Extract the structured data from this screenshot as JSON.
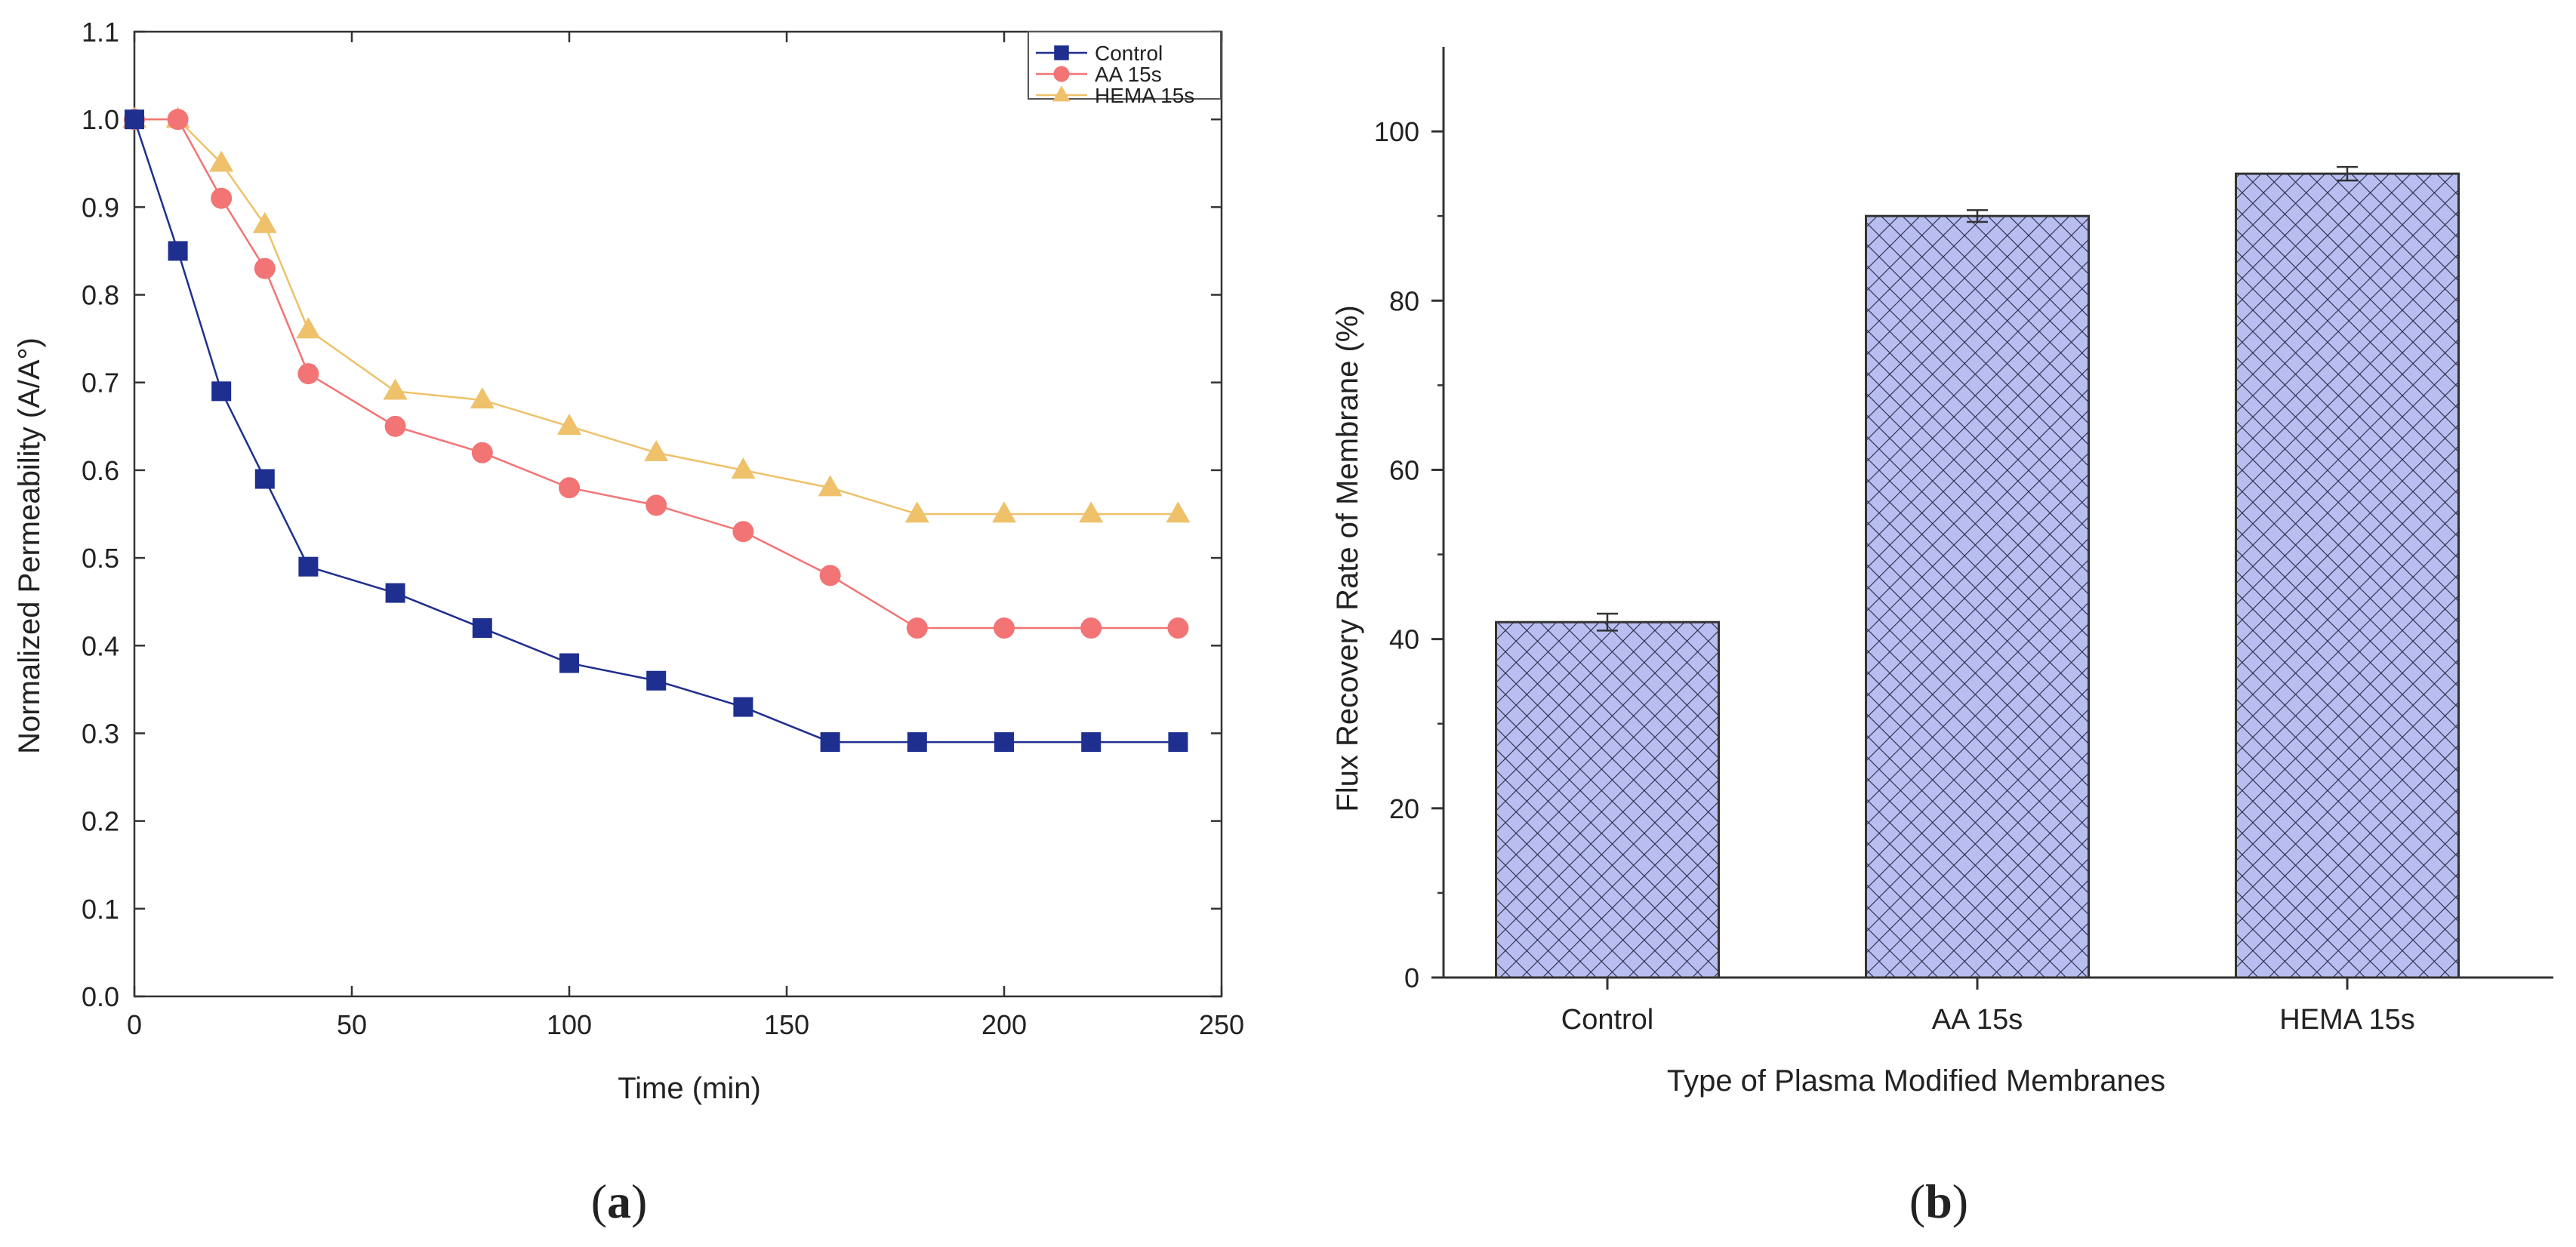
{
  "chart_data": [
    {
      "panel": "(a)",
      "panel_letter": "a",
      "type": "line",
      "title": "",
      "xlabel": "Time (min)",
      "ylabel": "Normalized Permeability (A/A°)",
      "xlim": [
        0,
        250
      ],
      "ylim": [
        0.0,
        1.1
      ],
      "xticks": [
        "0",
        "50",
        "100",
        "150",
        "200",
        "250"
      ],
      "yticks": [
        "0.0",
        "0.1",
        "0.2",
        "0.3",
        "0.4",
        "0.5",
        "0.6",
        "0.7",
        "0.8",
        "0.9",
        "1.0",
        "1.1"
      ],
      "legend_position": "top-right",
      "series": [
        {
          "name": "Control",
          "marker": "square",
          "color": "#1f2f8f",
          "x": [
            0,
            10,
            20,
            30,
            40,
            60,
            80,
            100,
            120,
            140,
            160,
            180,
            200,
            220,
            240
          ],
          "y": [
            1.0,
            0.85,
            0.69,
            0.59,
            0.49,
            0.46,
            0.42,
            0.38,
            0.36,
            0.33,
            0.29,
            0.29,
            0.29,
            0.29,
            0.29
          ]
        },
        {
          "name": "AA 15s",
          "marker": "circle",
          "color": "#f27474",
          "x": [
            0,
            10,
            20,
            30,
            40,
            60,
            80,
            100,
            120,
            140,
            160,
            180,
            200,
            220,
            240
          ],
          "y": [
            1.0,
            1.0,
            0.91,
            0.83,
            0.71,
            0.65,
            0.62,
            0.58,
            0.56,
            0.53,
            0.48,
            0.42,
            0.42,
            0.42,
            0.42
          ]
        },
        {
          "name": "HEMA 15s",
          "marker": "triangle",
          "color": "#eec16a",
          "x": [
            0,
            10,
            20,
            30,
            40,
            60,
            80,
            100,
            120,
            140,
            160,
            180,
            200,
            220,
            240
          ],
          "y": [
            1.0,
            1.0,
            0.95,
            0.88,
            0.76,
            0.69,
            0.68,
            0.65,
            0.62,
            0.6,
            0.58,
            0.55,
            0.55,
            0.55,
            0.55
          ]
        }
      ]
    },
    {
      "panel": "(b)",
      "panel_letter": "b",
      "type": "bar",
      "title": "",
      "xlabel": "Type of Plasma Modified Membranes",
      "ylabel": "Flux Recovery Rate of Membrane (%)",
      "ylim": [
        0,
        110
      ],
      "yticks": [
        "0",
        "20",
        "40",
        "60",
        "80",
        "100"
      ],
      "categories": [
        "Control",
        "AA 15s",
        "HEMA 15s"
      ],
      "values": [
        42,
        90,
        95
      ],
      "errors": [
        1,
        0.7,
        0.8
      ],
      "bar_color": "#b8bff0",
      "hatch": "crosshatch"
    }
  ]
}
